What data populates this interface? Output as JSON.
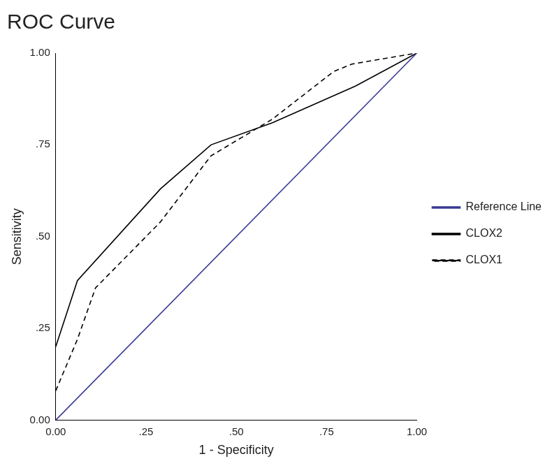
{
  "chart_data": {
    "type": "line",
    "title": "ROC Curve",
    "x_label": "1 - Specificity",
    "y_label": "Sensitivity",
    "series": [
      {
        "name": "Reference Line",
        "color": "#3a3a96",
        "line_style": "solid",
        "x": [
          0,
          1
        ],
        "values": [
          0,
          1
        ]
      },
      {
        "name": "CLOX2",
        "color": "#000000",
        "line_style": "solid",
        "x": [
          0,
          0.06,
          0.29,
          0.43,
          0.6,
          0.83,
          1
        ],
        "values": [
          0.2,
          0.38,
          0.63,
          0.75,
          0.81,
          0.91,
          1
        ]
      },
      {
        "name": "CLOX1",
        "color": "#000000",
        "line_style": "dashed",
        "x": [
          0,
          0.06,
          0.11,
          0.29,
          0.43,
          0.6,
          0.77,
          0.82,
          1
        ],
        "values": [
          0.08,
          0.22,
          0.36,
          0.54,
          0.72,
          0.82,
          0.95,
          0.97,
          1
        ]
      }
    ],
    "xlim": [
      0,
      1
    ],
    "xticks": [
      {
        "value": 0,
        "label": "0.00"
      },
      {
        "value": 0.25,
        "label": ".25"
      },
      {
        "value": 0.5,
        "label": ".50"
      },
      {
        "value": 0.75,
        "label": ".75"
      },
      {
        "value": 1,
        "label": "1.00"
      }
    ],
    "ylim": [
      0,
      1
    ],
    "yticks": [
      {
        "value": 0,
        "label": "0.00"
      },
      {
        "value": 0.25,
        "label": ".25"
      },
      {
        "value": 0.5,
        "label": ".50"
      },
      {
        "value": 0.75,
        "label": ".75"
      },
      {
        "value": 1,
        "label": "1.00"
      }
    ],
    "grid": false,
    "legend": "right"
  }
}
